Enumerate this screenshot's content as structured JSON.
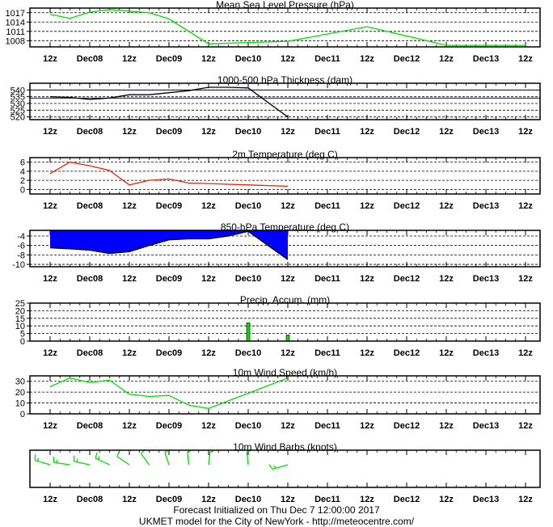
{
  "x_tick_labels": [
    "12z",
    "Dec08",
    "12z",
    "Dec09",
    "12z",
    "Dec10",
    "12z",
    "Dec11",
    "12z",
    "Dec12",
    "12z",
    "Dec13",
    "12z"
  ],
  "chart_data": [
    {
      "type": "line",
      "title": "Mean Sea Level Pressure (hPa)",
      "yticks": [
        1008,
        1011,
        1014,
        1017
      ],
      "ylim": [
        1006,
        1018.5
      ],
      "grid": true,
      "color": "#00e000",
      "x": [
        0,
        1,
        2,
        3,
        4,
        5,
        6,
        7,
        8,
        9,
        10,
        11,
        12
      ],
      "values": [
        1016.5,
        1015.2,
        1017.2,
        1018.0,
        1017.5,
        1017.0,
        1015.0,
        1007.0,
        1007.8,
        1012.5,
        1006.5,
        1006.5,
        1006.5
      ],
      "x_override": [
        0,
        0.5,
        1,
        1.5,
        2,
        2.5,
        3,
        4,
        6,
        8,
        10,
        11,
        12
      ]
    },
    {
      "type": "line",
      "title": "1000-500 hPa Thickness (dam)",
      "yticks": [
        520,
        525,
        530,
        535,
        540
      ],
      "ylim": [
        518,
        545
      ],
      "grid": true,
      "color": "#000000",
      "reference_lines": [
        {
          "value": 540,
          "color": "#0000cc"
        },
        {
          "value": 534,
          "color": "#0000cc"
        }
      ],
      "x": [
        0,
        0.5,
        1,
        1.5,
        2,
        2.5,
        3,
        3.5,
        4,
        4.5,
        5,
        6
      ],
      "values": [
        535,
        534.5,
        533,
        534,
        536.5,
        536.5,
        538,
        539.5,
        542,
        542,
        541.5,
        520
      ]
    },
    {
      "type": "line",
      "title": "2m Temperature (deg C)",
      "yticks": [
        0,
        2,
        4,
        6
      ],
      "ylim": [
        -1,
        7
      ],
      "grid": true,
      "color": "#ee2200",
      "x": [
        0,
        0.5,
        1,
        1.5,
        2,
        2.5,
        3,
        3.5,
        4,
        5,
        6
      ],
      "values": [
        3.5,
        6.0,
        5.2,
        4.2,
        1.0,
        2.0,
        2.3,
        1.4,
        1.3,
        1.0,
        0.7
      ]
    },
    {
      "type": "area",
      "title": "850-hPa Temperature (deg C)",
      "yticks": [
        -4,
        -6,
        -8,
        -10
      ],
      "ylim": [
        -10.5,
        -2.8
      ],
      "grid": true,
      "fill": "#0000ff",
      "baseline": -2.8,
      "x": [
        0,
        0.5,
        1,
        1.5,
        2,
        2.5,
        3,
        3.5,
        4,
        4.5,
        5,
        6
      ],
      "values": [
        -6.5,
        -6.7,
        -7.0,
        -7.7,
        -7.3,
        -6.0,
        -4.8,
        -4.6,
        -4.6,
        -4.0,
        -3.0,
        -9.0
      ]
    },
    {
      "type": "bar",
      "title": "Precip. Accum. (mm)",
      "yticks": [
        0,
        5,
        10,
        15,
        20,
        25
      ],
      "ylim": [
        0,
        25
      ],
      "grid": true,
      "color": "#00e000",
      "x": [
        5,
        6
      ],
      "values": [
        12,
        4
      ]
    },
    {
      "type": "line",
      "title": "10m Wind Speed (km/h)",
      "yticks": [
        0,
        10,
        20,
        30
      ],
      "ylim": [
        0,
        35
      ],
      "grid": true,
      "color": "#00e000",
      "x": [
        0,
        0.5,
        1,
        1.5,
        2,
        2.5,
        3,
        3.5,
        4,
        5,
        6
      ],
      "values": [
        25,
        33,
        29,
        31,
        18,
        16,
        17,
        8,
        5,
        19,
        33
      ]
    },
    {
      "type": "wind-barbs",
      "title": "10m Wind Barbs  (knots)",
      "color": "#00e000",
      "barbs": [
        {
          "x": 0,
          "dir": 290,
          "speed": 15
        },
        {
          "x": 0.5,
          "dir": 280,
          "speed": 15
        },
        {
          "x": 1,
          "dir": 285,
          "speed": 15
        },
        {
          "x": 1.5,
          "dir": 300,
          "speed": 15
        },
        {
          "x": 2,
          "dir": 310,
          "speed": 10
        },
        {
          "x": 2.5,
          "dir": 330,
          "speed": 10
        },
        {
          "x": 3,
          "dir": 345,
          "speed": 5
        },
        {
          "x": 3.5,
          "dir": 355,
          "speed": 5
        },
        {
          "x": 4,
          "dir": 5,
          "speed": 5
        },
        {
          "x": 5,
          "dir": 355,
          "speed": 10
        },
        {
          "x": 6,
          "dir": 250,
          "speed": 15
        }
      ]
    }
  ],
  "footer": {
    "line1": "Forecast Initialized on Thu Dec  7 12:00:00 2017",
    "line2": "UKMET model for the City of NewYork - http://meteocentre.com/"
  }
}
